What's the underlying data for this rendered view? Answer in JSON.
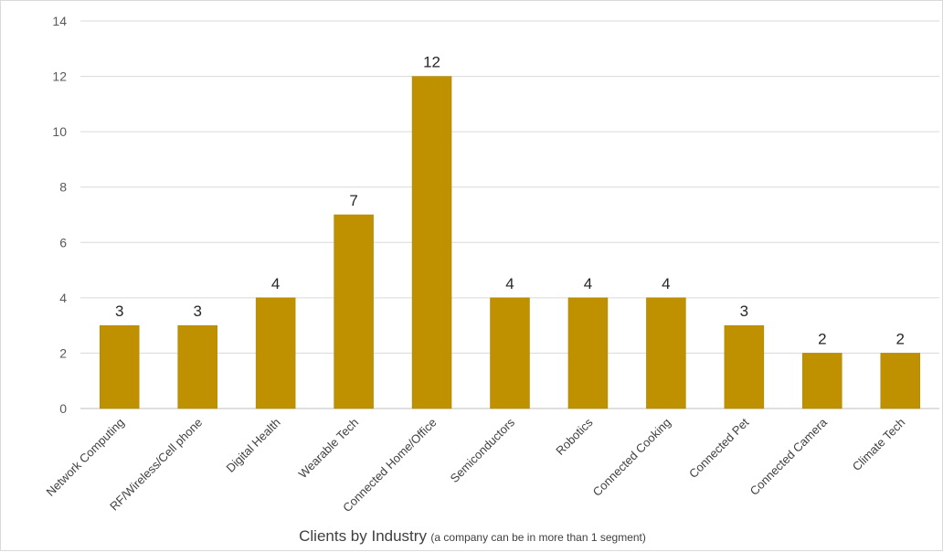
{
  "chart_data": {
    "type": "bar",
    "title": "",
    "xlabel": "Clients by Industry",
    "xlabel_note": "(a company can be in more than 1 segment)",
    "ylabel": "",
    "ylim": [
      0,
      14
    ],
    "yticks": [
      0,
      2,
      4,
      6,
      8,
      10,
      12,
      14
    ],
    "grid": true,
    "legend": "none",
    "bar_color": "#bf9000",
    "categories": [
      "Network Computing",
      "RF/Wireless/Cell phone",
      "Digital Health",
      "Wearable Tech",
      "Connected Home/Office",
      "Semiconductors",
      "Robotics",
      "Connected Cooking",
      "Connected Pet",
      "Connected Camera",
      "Climate Tech"
    ],
    "values": [
      3,
      3,
      4,
      7,
      12,
      4,
      4,
      4,
      3,
      2,
      2
    ]
  }
}
